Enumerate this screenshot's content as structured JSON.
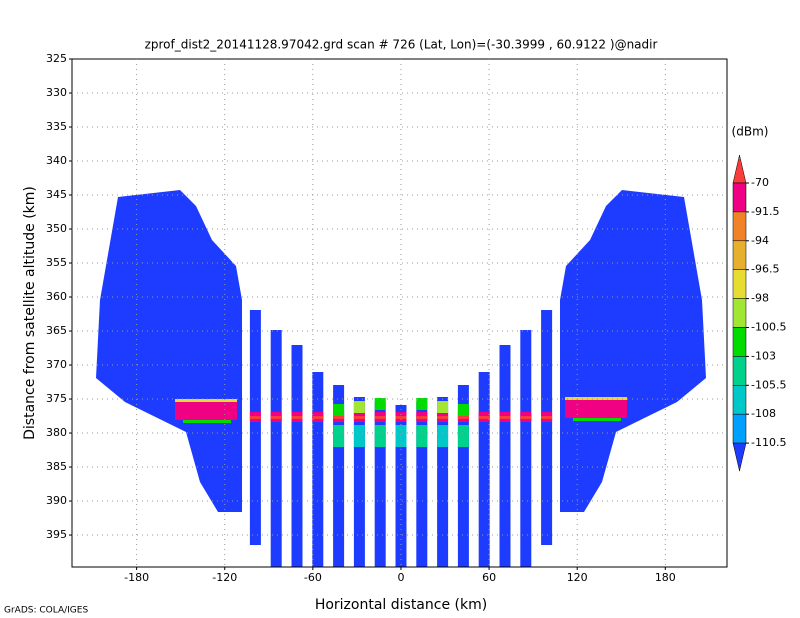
{
  "chart_data": {
    "type": "shaded-field",
    "title": "zprof_dist2_20141128.97042.grd  scan # 726  (Lat, Lon)=(-30.3999 , 60.9122 )@nadir",
    "x_label": "Horizontal distance (km)",
    "y_label": "Distance from satellite altitude (km)",
    "footer": "GrADS: COLA/IGES",
    "xlim": [
      -224,
      222
    ],
    "xticks": [
      -180,
      -120,
      -60,
      0,
      60,
      120,
      180
    ],
    "ylim": [
      325,
      399.7
    ],
    "yticks": [
      325,
      330,
      335,
      340,
      345,
      350,
      355,
      360,
      365,
      370,
      375,
      380,
      385,
      390,
      395
    ],
    "y_inverted": true,
    "grid": true,
    "colorbar": {
      "title": "(dBm)",
      "levels": [
        -70,
        -91.5,
        -94,
        -96.5,
        -98,
        -100.5,
        -103,
        -105.5,
        -108,
        -110.5
      ],
      "colors": [
        "#fa3c3c",
        "#f00082",
        "#f08228",
        "#e6af2d",
        "#e6dc32",
        "#a0e632",
        "#00dc00",
        "#00d28c",
        "#00c8c8",
        "#00a0ff",
        "#1e3cff"
      ]
    }
  }
}
